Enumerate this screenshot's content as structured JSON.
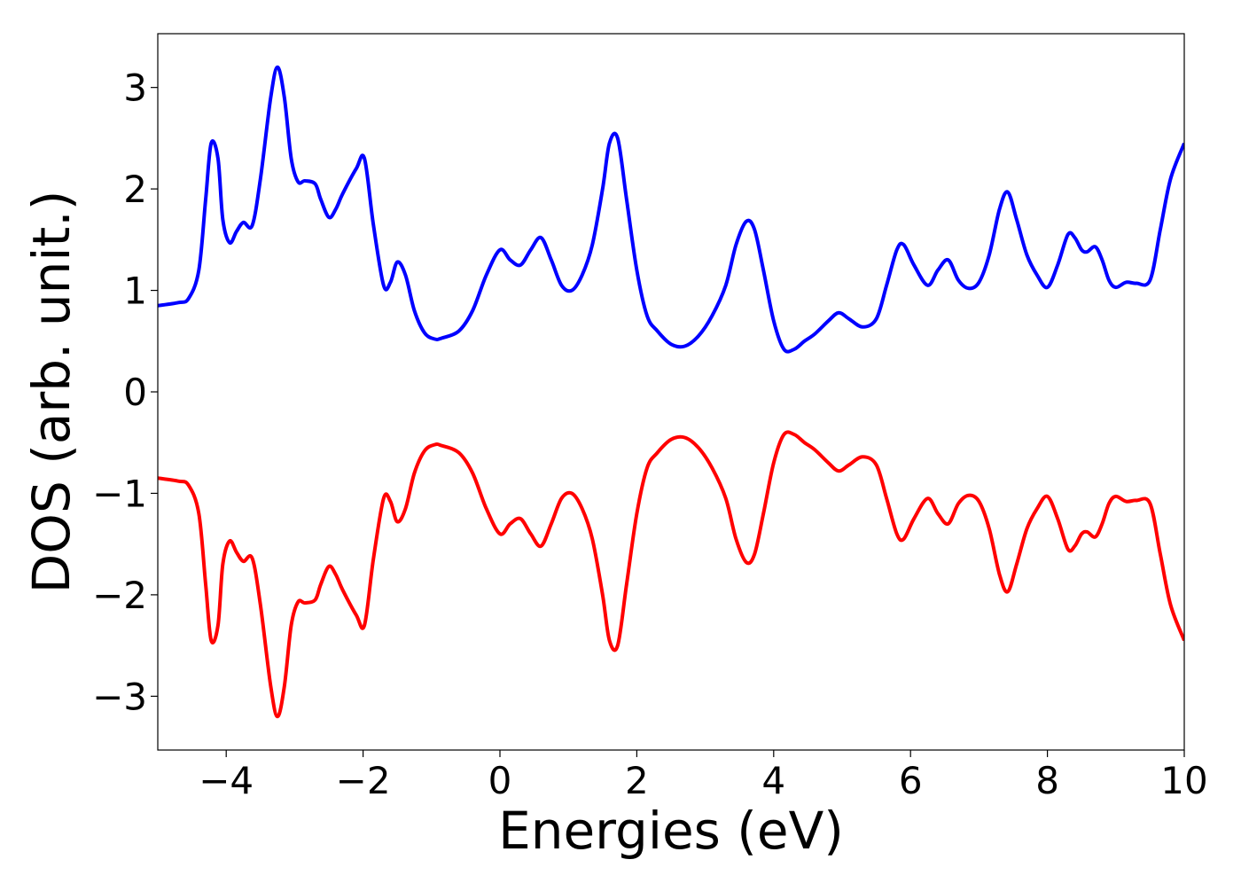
{
  "chart_data": {
    "type": "line",
    "title": "",
    "xlabel": "Energies (eV)",
    "ylabel": "DOS (arb. unit.)",
    "xlim": [
      -5,
      10
    ],
    "ylim": [
      -3.53,
      3.53
    ],
    "xticks": [
      -4,
      -2,
      0,
      2,
      4,
      6,
      8,
      10
    ],
    "yticks": [
      -3,
      -2,
      -1,
      0,
      1,
      2,
      3
    ],
    "xtick_labels": [
      "−4",
      "−2",
      "0",
      "2",
      "4",
      "6",
      "8",
      "10"
    ],
    "ytick_labels": [
      "−3",
      "−2",
      "−1",
      "0",
      "1",
      "2",
      "3"
    ],
    "grid": false,
    "legend": "none",
    "series": [
      {
        "color": "#0000ff",
        "x": [
          -5,
          -4.7,
          -4.55,
          -4.4,
          -4.3,
          -4.22,
          -4.12,
          -4.05,
          -3.95,
          -3.85,
          -3.75,
          -3.62,
          -3.5,
          -3.35,
          -3.25,
          -3.15,
          -3.05,
          -2.95,
          -2.85,
          -2.7,
          -2.62,
          -2.5,
          -2.4,
          -2.3,
          -2.1,
          -1.98,
          -1.85,
          -1.7,
          -1.6,
          -1.5,
          -1.38,
          -1.25,
          -1.1,
          -0.95,
          -0.85,
          -0.6,
          -0.4,
          -0.2,
          0,
          0.15,
          0.3,
          0.45,
          0.6,
          0.75,
          0.9,
          1.05,
          1.2,
          1.35,
          1.5,
          1.6,
          1.72,
          1.85,
          2.0,
          2.15,
          2.3,
          2.5,
          2.7,
          2.9,
          3.1,
          3.3,
          3.45,
          3.6,
          3.72,
          3.85,
          4.0,
          4.15,
          4.3,
          4.45,
          4.6,
          4.8,
          4.95,
          5.1,
          5.3,
          5.5,
          5.65,
          5.8,
          5.9,
          6.05,
          6.25,
          6.4,
          6.55,
          6.7,
          6.85,
          7.0,
          7.15,
          7.3,
          7.42,
          7.55,
          7.7,
          7.85,
          8.0,
          8.15,
          8.3,
          8.4,
          8.5,
          8.58,
          8.7,
          8.8,
          8.9,
          9.0,
          9.15,
          9.3,
          9.5,
          9.65,
          9.8,
          10
        ],
        "y": [
          0.85,
          0.88,
          0.92,
          1.2,
          1.9,
          2.45,
          2.3,
          1.7,
          1.47,
          1.58,
          1.67,
          1.64,
          2.1,
          2.9,
          3.2,
          2.9,
          2.3,
          2.07,
          2.08,
          2.05,
          1.9,
          1.72,
          1.8,
          1.95,
          2.2,
          2.3,
          1.65,
          1.05,
          1.08,
          1.28,
          1.15,
          0.8,
          0.58,
          0.52,
          0.53,
          0.6,
          0.8,
          1.15,
          1.4,
          1.3,
          1.25,
          1.4,
          1.52,
          1.3,
          1.05,
          1.0,
          1.15,
          1.45,
          2.0,
          2.45,
          2.5,
          1.9,
          1.2,
          0.75,
          0.6,
          0.47,
          0.45,
          0.55,
          0.75,
          1.05,
          1.45,
          1.68,
          1.6,
          1.2,
          0.7,
          0.42,
          0.42,
          0.5,
          0.57,
          0.7,
          0.78,
          0.72,
          0.64,
          0.72,
          1.05,
          1.4,
          1.45,
          1.25,
          1.05,
          1.2,
          1.3,
          1.1,
          1.02,
          1.08,
          1.35,
          1.8,
          1.97,
          1.7,
          1.35,
          1.15,
          1.03,
          1.25,
          1.55,
          1.52,
          1.4,
          1.38,
          1.43,
          1.3,
          1.1,
          1.03,
          1.08,
          1.07,
          1.1,
          1.6,
          2.1,
          2.45
        ]
      },
      {
        "color": "#ff0000",
        "x": [
          -5,
          -4.7,
          -4.55,
          -4.4,
          -4.3,
          -4.22,
          -4.12,
          -4.05,
          -3.95,
          -3.85,
          -3.75,
          -3.62,
          -3.5,
          -3.35,
          -3.25,
          -3.15,
          -3.05,
          -2.95,
          -2.85,
          -2.7,
          -2.62,
          -2.5,
          -2.4,
          -2.3,
          -2.1,
          -1.98,
          -1.85,
          -1.7,
          -1.6,
          -1.5,
          -1.38,
          -1.25,
          -1.1,
          -0.95,
          -0.85,
          -0.6,
          -0.4,
          -0.2,
          0,
          0.15,
          0.3,
          0.45,
          0.6,
          0.75,
          0.9,
          1.05,
          1.2,
          1.35,
          1.5,
          1.6,
          1.72,
          1.85,
          2.0,
          2.15,
          2.3,
          2.5,
          2.7,
          2.9,
          3.1,
          3.3,
          3.45,
          3.6,
          3.72,
          3.85,
          4.0,
          4.15,
          4.3,
          4.45,
          4.6,
          4.8,
          4.95,
          5.1,
          5.3,
          5.5,
          5.65,
          5.8,
          5.9,
          6.05,
          6.25,
          6.4,
          6.55,
          6.7,
          6.85,
          7.0,
          7.15,
          7.3,
          7.42,
          7.55,
          7.7,
          7.85,
          8.0,
          8.15,
          8.3,
          8.4,
          8.5,
          8.58,
          8.7,
          8.8,
          8.9,
          9.0,
          9.15,
          9.3,
          9.5,
          9.65,
          9.8,
          10
        ],
        "y": [
          -0.85,
          -0.88,
          -0.92,
          -1.2,
          -1.9,
          -2.45,
          -2.3,
          -1.7,
          -1.47,
          -1.58,
          -1.67,
          -1.64,
          -2.1,
          -2.9,
          -3.2,
          -2.9,
          -2.3,
          -2.07,
          -2.08,
          -2.05,
          -1.9,
          -1.72,
          -1.8,
          -1.95,
          -2.2,
          -2.3,
          -1.65,
          -1.05,
          -1.08,
          -1.28,
          -1.15,
          -0.8,
          -0.58,
          -0.52,
          -0.53,
          -0.6,
          -0.8,
          -1.15,
          -1.4,
          -1.3,
          -1.25,
          -1.4,
          -1.52,
          -1.3,
          -1.05,
          -1.0,
          -1.15,
          -1.45,
          -2.0,
          -2.45,
          -2.5,
          -1.9,
          -1.2,
          -0.75,
          -0.6,
          -0.47,
          -0.45,
          -0.55,
          -0.75,
          -1.05,
          -1.45,
          -1.68,
          -1.6,
          -1.2,
          -0.7,
          -0.42,
          -0.42,
          -0.5,
          -0.57,
          -0.7,
          -0.78,
          -0.72,
          -0.64,
          -0.72,
          -1.05,
          -1.4,
          -1.45,
          -1.25,
          -1.05,
          -1.2,
          -1.3,
          -1.1,
          -1.02,
          -1.08,
          -1.35,
          -1.8,
          -1.97,
          -1.7,
          -1.35,
          -1.15,
          -1.03,
          -1.25,
          -1.55,
          -1.52,
          -1.4,
          -1.38,
          -1.43,
          -1.3,
          -1.1,
          -1.03,
          -1.08,
          -1.07,
          -1.1,
          -1.6,
          -2.1,
          -2.45
        ]
      }
    ]
  }
}
